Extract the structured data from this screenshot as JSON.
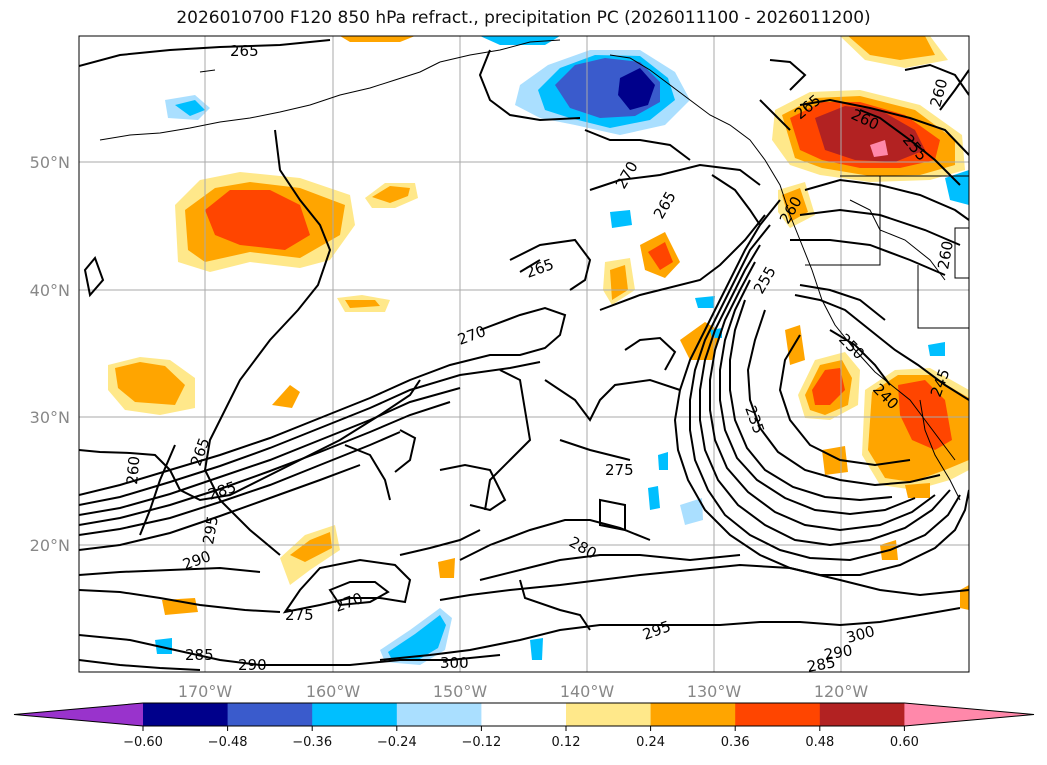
{
  "title": "2026010700 F120 850 hPa refract., precipitation PC (2026011100 - 2026011200)",
  "axes": {
    "lon_ticks": [
      "170°W",
      "160°W",
      "150°W",
      "140°W",
      "130°W",
      "120°W"
    ],
    "lat_ticks": [
      "50°N",
      "40°N",
      "30°N",
      "20°N"
    ]
  },
  "contour_labels": [
    "265",
    "260",
    "265",
    "270",
    "265",
    "265",
    "270",
    "260",
    "285",
    "295",
    "290",
    "275",
    "270",
    "285",
    "290",
    "300",
    "295",
    "280",
    "275",
    "235",
    "255",
    "250",
    "240",
    "245",
    "265",
    "260",
    "255",
    "260",
    "260",
    "300",
    "290",
    "285"
  ],
  "colorbar": {
    "ticks": [
      "−0.60",
      "−0.48",
      "−0.36",
      "−0.24",
      "−0.12",
      "0.12",
      "0.24",
      "0.36",
      "0.48",
      "0.60"
    ],
    "colors": [
      "#9933cc",
      "#00008b",
      "#3a5bcc",
      "#00bfff",
      "#aadfff",
      "#ffffff",
      "#ffe88a",
      "#ffa500",
      "#ff4500",
      "#b22222",
      "#ff88aa"
    ]
  }
}
